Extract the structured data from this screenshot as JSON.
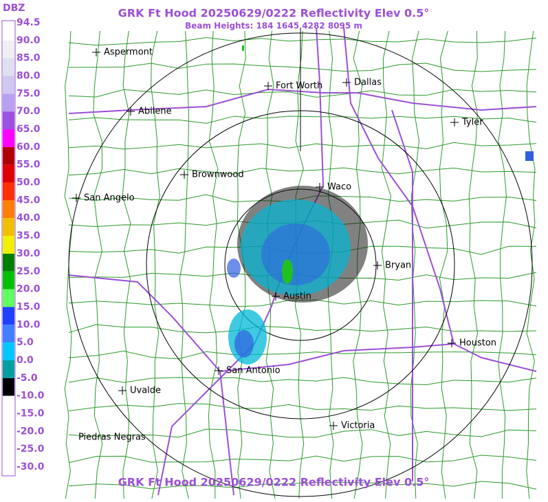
{
  "header": {
    "title": "GRK Ft Hood 20250629/0222 Reflectivity Elev 0.5°",
    "subtitle": "Beam Heights: 184 1645 4282 8095 m",
    "footer": "GRK Ft Hood 20250629/0222 Reflectivity Elev 0.5°"
  },
  "legend": {
    "unit": "DBZ",
    "labels": [
      "94.5",
      "90.0",
      "85.0",
      "80.0",
      "75.0",
      "70.0",
      "65.0",
      "60.0",
      "55.0",
      "50.0",
      "45.0",
      "40.0",
      "35.0",
      "30.0",
      "25.0",
      "20.0",
      "15.0",
      "10.0",
      "5.0",
      "0.0",
      "-5.0",
      "-10.0",
      "-15.0",
      "-20.0",
      "-25.0",
      "-30.0"
    ]
  },
  "cities": [
    "Aspermont",
    "Fort Worth",
    "Dallas",
    "Abilene",
    "Tyler",
    "Brownwood",
    "Waco",
    "San Angelo",
    "Bryan",
    "Austin",
    "Houston",
    "San Antonio",
    "Uvalde",
    "Victoria",
    "Piedras Negras"
  ]
}
